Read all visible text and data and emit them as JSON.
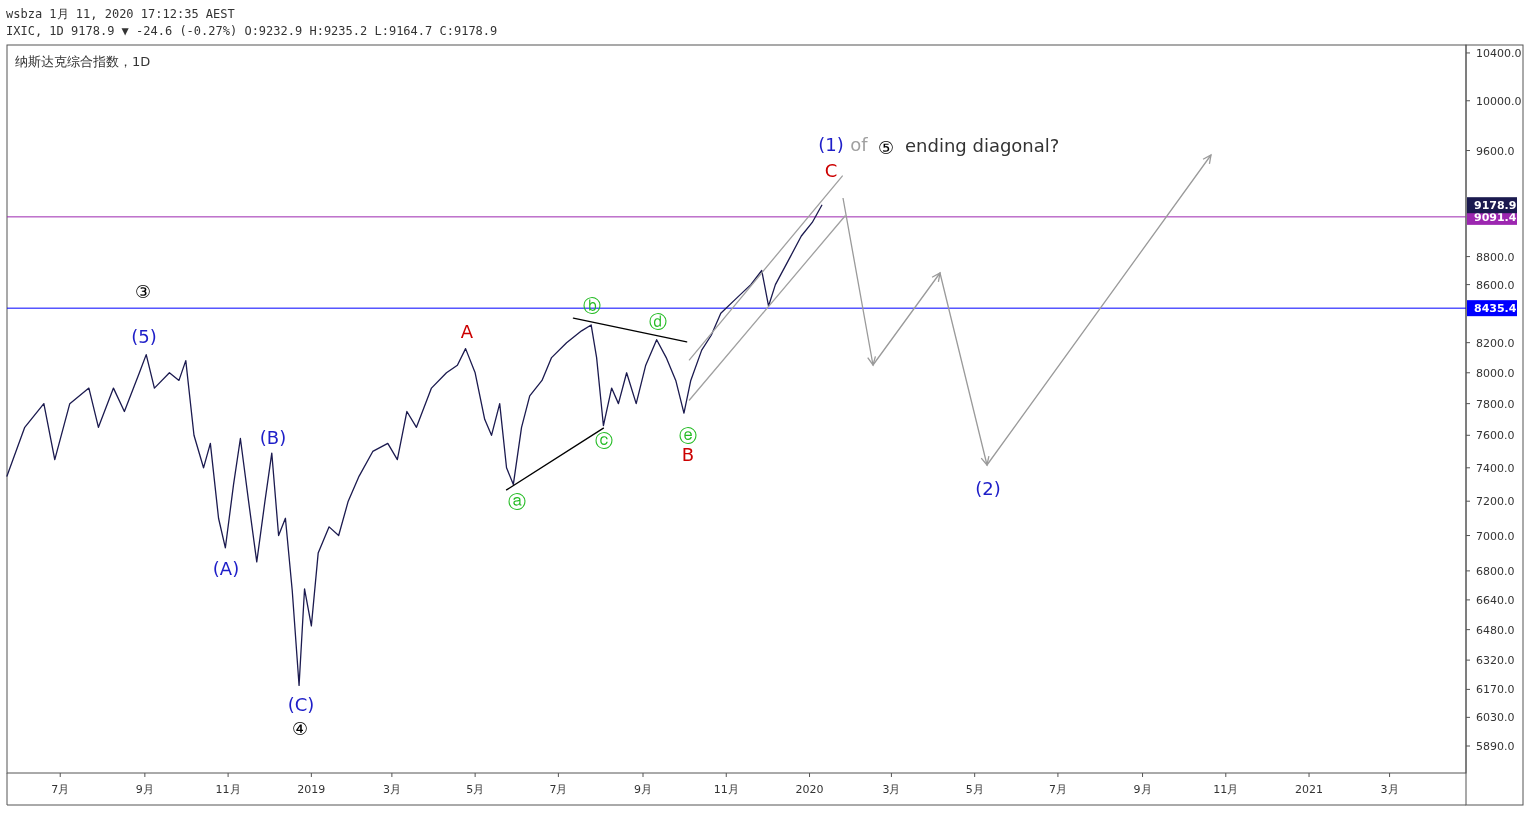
{
  "chart_data": {
    "type": "line",
    "title": "纳斯达克综合指数，1D",
    "log": "y",
    "grid": false,
    "marker": "none",
    "line_style": "solid",
    "xlim": [
      "2018-05-23",
      "2021-04-26"
    ],
    "xticks": [
      {
        "value": "2018-07-01",
        "label": "7月"
      },
      {
        "value": "2018-09-01",
        "label": "9月"
      },
      {
        "value": "2018-11-01",
        "label": "11月"
      },
      {
        "value": "2019-01-01",
        "label": "2019"
      },
      {
        "value": "2019-03-01",
        "label": "3月"
      },
      {
        "value": "2019-05-01",
        "label": "5月"
      },
      {
        "value": "2019-07-01",
        "label": "7月"
      },
      {
        "value": "2019-09-01",
        "label": "9月"
      },
      {
        "value": "2019-11-01",
        "label": "11月"
      },
      {
        "value": "2020-01-01",
        "label": "2020"
      },
      {
        "value": "2020-03-01",
        "label": "3月"
      },
      {
        "value": "2020-05-01",
        "label": "5月"
      },
      {
        "value": "2020-07-01",
        "label": "7月"
      },
      {
        "value": "2020-09-01",
        "label": "9月"
      },
      {
        "value": "2020-11-01",
        "label": "11月"
      },
      {
        "value": "2021-01-01",
        "label": "2021"
      },
      {
        "value": "2021-03-01",
        "label": "3月"
      }
    ],
    "ylim": [
      5761,
      10468
    ],
    "yticks": [
      {
        "value": 5890,
        "label": "5890.0"
      },
      {
        "value": 6030,
        "label": "6030.0"
      },
      {
        "value": 6170,
        "label": "6170.0"
      },
      {
        "value": 6320,
        "label": "6320.0"
      },
      {
        "value": 6480,
        "label": "6480.0"
      },
      {
        "value": 6640,
        "label": "6640.0"
      },
      {
        "value": 6800,
        "label": "6800.0"
      },
      {
        "value": 7000,
        "label": "7000.0"
      },
      {
        "value": 7200,
        "label": "7200.0"
      },
      {
        "value": 7400,
        "label": "7400.0"
      },
      {
        "value": 7600,
        "label": "7600.0"
      },
      {
        "value": 7800,
        "label": "7800.0"
      },
      {
        "value": 8000,
        "label": "8000.0"
      },
      {
        "value": 8200,
        "label": "8200.0"
      },
      {
        "value": 8600,
        "label": "8600.0"
      },
      {
        "value": 8800,
        "label": "8800.0"
      },
      {
        "value": 9600,
        "label": "9600.0"
      },
      {
        "value": 10000,
        "label": "10000.0"
      },
      {
        "value": 10400,
        "label": "10400.0"
      }
    ],
    "series": [
      {
        "color": "#1b1a4f",
        "x": [
          "2018-05-23",
          "2018-06-05",
          "2018-06-19",
          "2018-06-27",
          "2018-07-08",
          "2018-07-22",
          "2018-07-29",
          "2018-08-09",
          "2018-08-17",
          "2018-08-28",
          "2018-09-02",
          "2018-09-08",
          "2018-09-19",
          "2018-09-26",
          "2018-10-01",
          "2018-10-07",
          "2018-10-14",
          "2018-10-19",
          "2018-10-25",
          "2018-10-30",
          "2018-11-05",
          "2018-11-10",
          "2018-11-16",
          "2018-11-22",
          "2018-11-28",
          "2018-12-03",
          "2018-12-08",
          "2018-12-13",
          "2018-12-18",
          "2018-12-23",
          "2018-12-27",
          "2019-01-01",
          "2019-01-06",
          "2019-01-14",
          "2019-01-21",
          "2019-01-28",
          "2019-02-05",
          "2019-02-15",
          "2019-02-26",
          "2019-03-05",
          "2019-03-12",
          "2019-03-19",
          "2019-03-30",
          "2019-04-10",
          "2019-04-18",
          "2019-04-24",
          "2019-05-01",
          "2019-05-08",
          "2019-05-13",
          "2019-05-19",
          "2019-05-24",
          "2019-05-29",
          "2019-06-04",
          "2019-06-10",
          "2019-06-19",
          "2019-06-26",
          "2019-07-07",
          "2019-07-18",
          "2019-07-25",
          "2019-07-29",
          "2019-08-03",
          "2019-08-09",
          "2019-08-14",
          "2019-08-20",
          "2019-08-27",
          "2019-09-03",
          "2019-09-11",
          "2019-09-18",
          "2019-09-25",
          "2019-10-01",
          "2019-10-06",
          "2019-10-14",
          "2019-10-21",
          "2019-10-28",
          "2019-11-08",
          "2019-11-19",
          "2019-11-27",
          "2019-12-02",
          "2019-12-07",
          "2019-12-18",
          "2019-12-26",
          "2020-01-03",
          "2020-01-10"
        ],
        "values": [
          7350,
          7650,
          7800,
          7450,
          7800,
          7900,
          7650,
          7900,
          7750,
          8000,
          8120,
          7900,
          8000,
          7950,
          8080,
          7600,
          7400,
          7550,
          7100,
          6930,
          7300,
          7580,
          7200,
          6850,
          7200,
          7490,
          7000,
          7100,
          6690,
          6190,
          6700,
          6500,
          6900,
          7050,
          7000,
          7200,
          7350,
          7500,
          7550,
          7450,
          7750,
          7650,
          7900,
          8000,
          8050,
          8160,
          8000,
          7700,
          7600,
          7800,
          7400,
          7300,
          7650,
          7850,
          7950,
          8100,
          8200,
          8280,
          8320,
          8100,
          7660,
          7900,
          7800,
          8000,
          7800,
          8050,
          8220,
          8100,
          7950,
          7740,
          7950,
          8150,
          8250,
          8400,
          8500,
          8600,
          8700,
          8450,
          8600,
          8800,
          8950,
          9050,
          9178.9
        ]
      },
      {
        "color": "#000000",
        "x": [
          "2019-05-24",
          "2019-08-03"
        ],
        "values": [
          7267,
          7645
        ]
      },
      {
        "color": "#000000",
        "x": [
          "2019-07-12",
          "2019-10-03"
        ],
        "values": [
          8367,
          8205
        ]
      },
      {
        "color": "#a0a0a0",
        "x": [
          "2019-10-05",
          "2020-01-25"
        ],
        "values": [
          8085,
          9401
        ]
      },
      {
        "color": "#a0a0a0",
        "x": [
          "2019-10-05",
          "2020-01-27"
        ],
        "values": [
          7823,
          9098
        ]
      }
    ],
    "ref_lines": [
      {
        "axis": "y",
        "value": 9091.4,
        "label": "9091.4",
        "color": "#9c27b0"
      },
      {
        "axis": "y",
        "value": 8435.4,
        "label": "8435.4",
        "color": "#0000ff"
      }
    ],
    "annotations": [
      "wsbza 1月 11, 2020 17:12:35 AEST",
      "IXIC, 1D 9178.9 ▼ -24.6 (-0.27%) O:9232.9 H:9235.2 L:9164.7 C:9178.9",
      "9178.9",
      "③",
      "(5)",
      "(A)",
      "(B)",
      "(C)",
      "④",
      "A",
      "ⓐ",
      "ⓑ",
      "ⓒ",
      "ⓓ",
      "ⓔ",
      "B",
      "C",
      "(1)",
      "of",
      "⑤",
      "ending diagonal?",
      "(2)"
    ]
  }
}
